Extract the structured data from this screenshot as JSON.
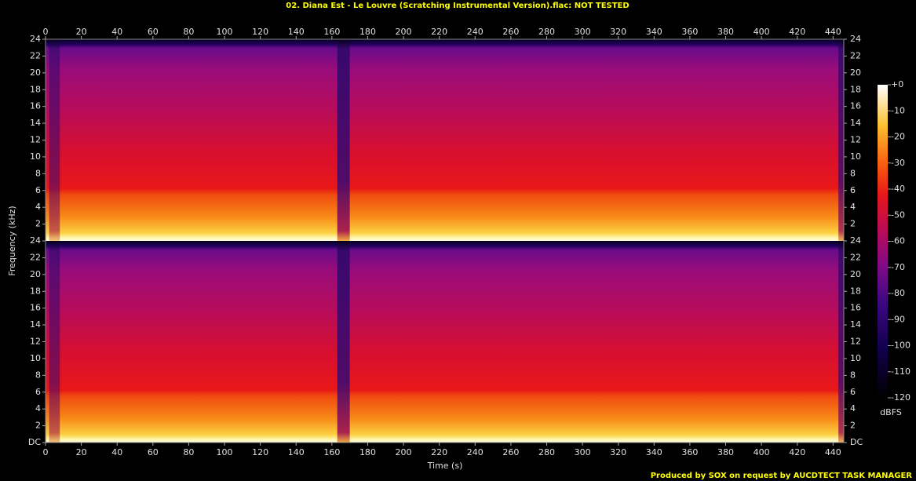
{
  "chart_data": {
    "type": "spectrogram",
    "title": "02. Diana Est - Le Louvre (Scratching Instrumental Version).flac: NOT TESTED",
    "xlabel": "Time (s)",
    "ylabel": "Frequency (kHz)",
    "xlim": [
      0,
      446
    ],
    "xticks": [
      0,
      20,
      40,
      60,
      80,
      100,
      120,
      140,
      160,
      180,
      200,
      220,
      240,
      260,
      280,
      300,
      320,
      340,
      360,
      380,
      400,
      420,
      440
    ],
    "panels": [
      {
        "ylim": [
          0,
          24
        ],
        "yticks": [
          2,
          4,
          6,
          8,
          10,
          12,
          14,
          16,
          18,
          20,
          22,
          24
        ]
      },
      {
        "ylim": [
          0,
          24
        ],
        "yticks": [
          {
            "value": 0,
            "label": "DC"
          },
          2,
          4,
          6,
          8,
          10,
          12,
          14,
          16,
          18,
          20,
          22,
          24
        ]
      }
    ],
    "colorbar": {
      "label": "dBFS",
      "lim": [
        -120,
        0
      ],
      "ticks": [
        {
          "value": 0,
          "label": "+0"
        },
        -10,
        -20,
        -30,
        -40,
        -50,
        -60,
        -70,
        -80,
        -90,
        -100,
        -110,
        -120
      ]
    },
    "footer": "Produced by SOX on request by AUCDTECT TASK MANAGER"
  }
}
